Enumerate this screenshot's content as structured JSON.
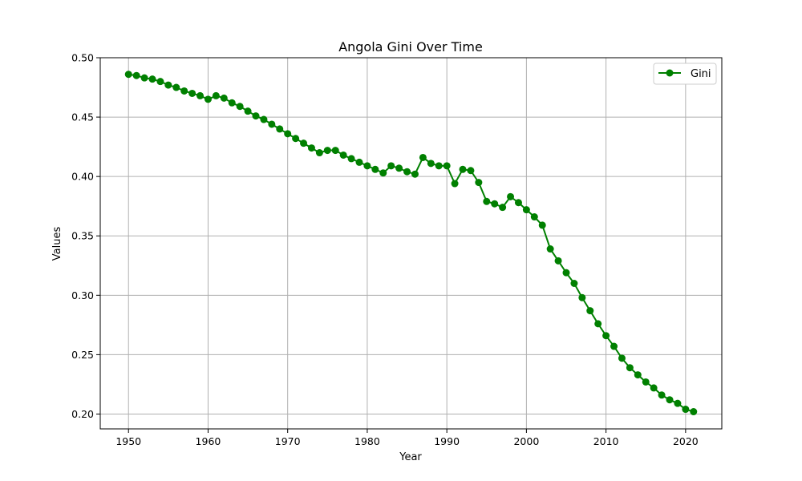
{
  "chart_data": {
    "type": "line",
    "title": "Angola Gini Over Time",
    "xlabel": "Year",
    "ylabel": "Values",
    "xlim": [
      1946.45,
      2024.55
    ],
    "ylim": [
      0.1875,
      0.5
    ],
    "x_ticks": [
      1950,
      1960,
      1970,
      1980,
      1990,
      2000,
      2010,
      2020
    ],
    "y_ticks": [
      0.2,
      0.25,
      0.3,
      0.35,
      0.4,
      0.45,
      0.5
    ],
    "grid": true,
    "legend_position": "top-right",
    "x": [
      1950,
      1951,
      1952,
      1953,
      1954,
      1955,
      1956,
      1957,
      1958,
      1959,
      1960,
      1961,
      1962,
      1963,
      1964,
      1965,
      1966,
      1967,
      1968,
      1969,
      1970,
      1971,
      1972,
      1973,
      1974,
      1975,
      1976,
      1977,
      1978,
      1979,
      1980,
      1981,
      1982,
      1983,
      1984,
      1985,
      1986,
      1987,
      1988,
      1989,
      1990,
      1991,
      1992,
      1993,
      1994,
      1995,
      1996,
      1997,
      1998,
      1999,
      2000,
      2001,
      2002,
      2003,
      2004,
      2005,
      2006,
      2007,
      2008,
      2009,
      2010,
      2011,
      2012,
      2013,
      2014,
      2015,
      2016,
      2017,
      2018,
      2019,
      2020,
      2021
    ],
    "series": [
      {
        "name": "Gini",
        "color": "#008000",
        "marker": "circle",
        "values": [
          0.486,
          0.485,
          0.483,
          0.482,
          0.48,
          0.477,
          0.475,
          0.472,
          0.47,
          0.468,
          0.465,
          0.468,
          0.466,
          0.462,
          0.459,
          0.455,
          0.451,
          0.448,
          0.444,
          0.44,
          0.436,
          0.432,
          0.428,
          0.424,
          0.42,
          0.422,
          0.422,
          0.418,
          0.415,
          0.412,
          0.409,
          0.406,
          0.403,
          0.409,
          0.407,
          0.404,
          0.402,
          0.416,
          0.411,
          0.409,
          0.409,
          0.394,
          0.406,
          0.405,
          0.395,
          0.379,
          0.377,
          0.374,
          0.383,
          0.378,
          0.372,
          0.366,
          0.359,
          0.339,
          0.329,
          0.319,
          0.31,
          0.298,
          0.287,
          0.276,
          0.266,
          0.257,
          0.247,
          0.239,
          0.233,
          0.227,
          0.222,
          0.216,
          0.212,
          0.209,
          0.204,
          0.202
        ]
      }
    ]
  }
}
